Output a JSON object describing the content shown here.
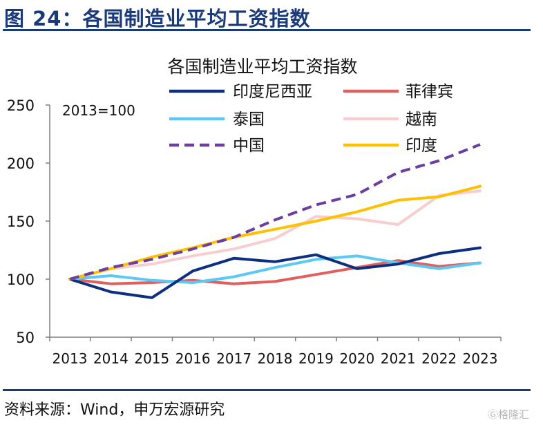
{
  "figure_title": "图 24：各国制造业平均工资指数",
  "source_text": "资料来源：Wind，申万宏源研究",
  "watermark_text": "格隆汇",
  "chart_data": {
    "type": "line",
    "title": "各国制造业平均工资指数",
    "annotation": "2013=100",
    "xlabel": "",
    "ylabel": "",
    "ylim": [
      50,
      250
    ],
    "yticks": [
      50,
      100,
      150,
      200,
      250
    ],
    "grid": false,
    "legend_position": "top",
    "categories": [
      "2013",
      "2014",
      "2015",
      "2016",
      "2017",
      "2018",
      "2019",
      "2020",
      "2021",
      "2022",
      "2023"
    ],
    "series": [
      {
        "name": "印度尼西亚",
        "color": "#0d2f7f",
        "dash": "solid",
        "values": [
          100,
          89,
          84,
          107,
          118,
          115,
          121,
          109,
          113,
          122,
          127
        ]
      },
      {
        "name": "菲律宾",
        "color": "#e06060",
        "dash": "solid",
        "values": [
          100,
          96,
          97,
          99,
          96,
          98,
          104,
          110,
          116,
          111,
          114
        ]
      },
      {
        "name": "泰国",
        "color": "#5bc8f5",
        "dash": "solid",
        "values": [
          100,
          103,
          99,
          97,
          102,
          110,
          117,
          120,
          114,
          109,
          114
        ]
      },
      {
        "name": "越南",
        "color": "#f7cdd0",
        "dash": "solid",
        "values": [
          100,
          109,
          113,
          120,
          126,
          135,
          154,
          152,
          147,
          172,
          176
        ]
      },
      {
        "name": "中国",
        "color": "#6a3fa0",
        "dash": "dashed",
        "values": [
          100,
          110,
          117,
          126,
          136,
          151,
          164,
          173,
          192,
          202,
          216
        ]
      },
      {
        "name": "印度",
        "color": "#ffc000",
        "dash": "solid",
        "values": [
          100,
          109,
          119,
          127,
          136,
          143,
          150,
          158,
          168,
          171,
          180
        ]
      }
    ]
  }
}
